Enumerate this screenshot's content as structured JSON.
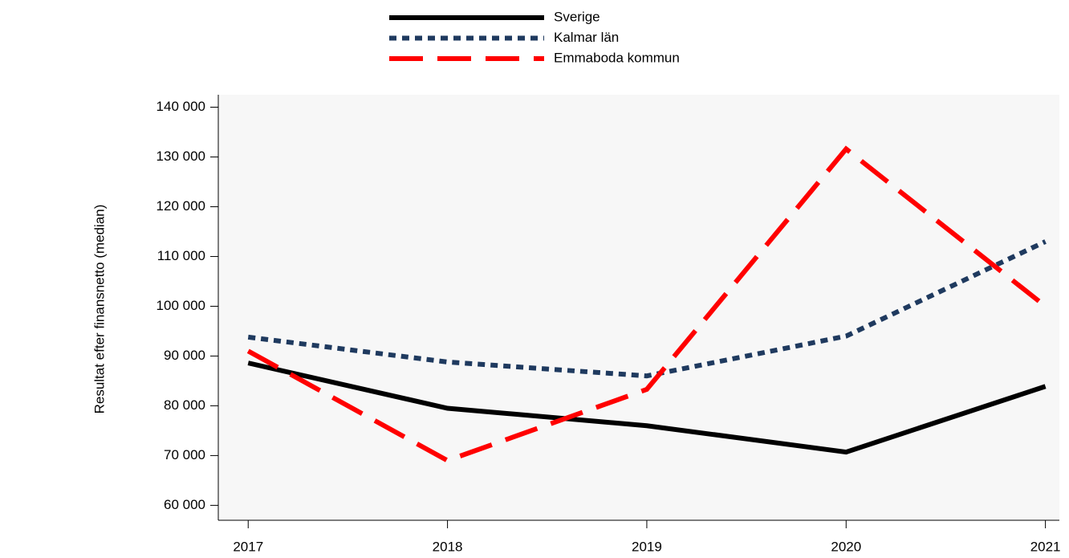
{
  "chart_data": {
    "type": "line",
    "y_label": "Resultat efter finansnetto (median)",
    "x": [
      2017,
      2018,
      2019,
      2020,
      2021
    ],
    "xlim": [
      2016.85,
      2021.07
    ],
    "xticks": [
      2017,
      2018,
      2019,
      2020,
      2021
    ],
    "ylim": [
      57000,
      142500
    ],
    "yticks": [
      {
        "value": 60000,
        "label": "60 000"
      },
      {
        "value": 70000,
        "label": "70 000"
      },
      {
        "value": 80000,
        "label": "80 000"
      },
      {
        "value": 90000,
        "label": "90 000"
      },
      {
        "value": 100000,
        "label": "100 000"
      },
      {
        "value": 110000,
        "label": "110 000"
      },
      {
        "value": 120000,
        "label": "120 000"
      },
      {
        "value": 130000,
        "label": "130 000"
      },
      {
        "value": 140000,
        "label": "140 000"
      }
    ],
    "series": [
      {
        "name": "Sverige",
        "color": "#000000",
        "dash": "solid",
        "values": [
          88600,
          79500,
          76000,
          70700,
          83900
        ]
      },
      {
        "name": "Kalmar län",
        "color": "#1f3a5f",
        "dash": "dotted",
        "values": [
          93800,
          88800,
          86000,
          94000,
          113000
        ]
      },
      {
        "name": "Emmaboda kommun",
        "color": "#ff0000",
        "dash": "dashed",
        "values": [
          91000,
          69000,
          83300,
          131600,
          100000
        ]
      }
    ],
    "plot_background": "#f7f7f7"
  }
}
